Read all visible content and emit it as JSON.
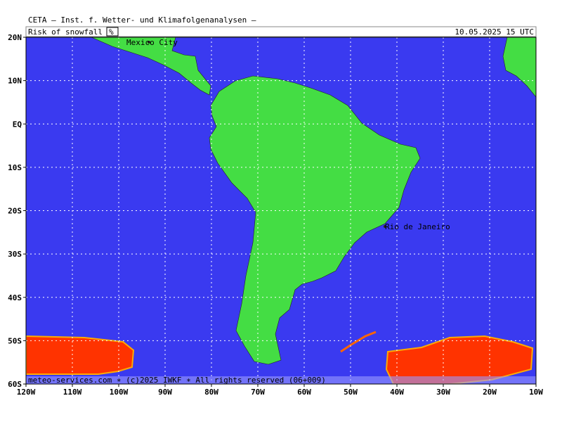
{
  "header": {
    "institute": "CETA — Inst. f. Wetter- und Klimafolgenanalysen —",
    "title": "Risk of snowfall",
    "unit": "%",
    "datetime": "10.05.2025 15 UTC"
  },
  "map": {
    "lat_labels": [
      "20N",
      "10N",
      "EQ",
      "10S",
      "20S",
      "30S",
      "40S",
      "50S",
      "60S"
    ],
    "lon_labels": [
      "120W",
      "110W",
      "100W",
      "90W",
      "80W",
      "70W",
      "60W",
      "50W",
      "40W",
      "30W",
      "20W",
      "10W"
    ],
    "cities": [
      "Mexico City",
      "Rio de Janeiro"
    ]
  },
  "footer": {
    "credit": "meteo-services.com ∗ (c)2025 IWKF ∗ All rights reserved (06+009)"
  }
}
